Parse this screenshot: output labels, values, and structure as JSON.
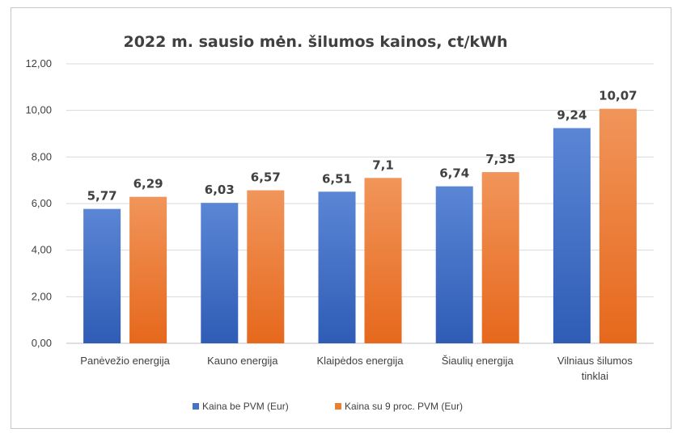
{
  "chart_data": {
    "type": "bar",
    "title": "2022 m. sausio mėn. šilumos kainos, ct/kWh",
    "categories": [
      [
        "Panėvežio energija"
      ],
      [
        "Kauno energija"
      ],
      [
        "Klaipėdos energija"
      ],
      [
        "Šiaulių energija"
      ],
      [
        "Vilniaus šilumos",
        "tinklai"
      ]
    ],
    "series": [
      {
        "name": "Kaina be PVM (Eur)",
        "values": [
          5.77,
          6.03,
          6.51,
          6.74,
          9.24
        ],
        "labels": [
          "5,77",
          "6,03",
          "6,51",
          "6,74",
          "9,24"
        ],
        "color": "#4472c4",
        "color_top": "#5b86d6",
        "color_bottom": "#2f5cb5"
      },
      {
        "name": "Kaina su 9 proc. PVM (Eur)",
        "values": [
          6.29,
          6.57,
          7.1,
          7.35,
          10.07
        ],
        "labels": [
          "6,29",
          "6,57",
          "7,1",
          "7,35",
          "10,07"
        ],
        "color": "#ed7d31",
        "color_top": "#f1955a",
        "color_bottom": "#e6681c"
      }
    ],
    "ylim": [
      0,
      12
    ],
    "y_ticks": [
      "0,00",
      "2,00",
      "4,00",
      "6,00",
      "8,00",
      "10,00",
      "12,00"
    ],
    "grid": true,
    "legend_position": "bottom",
    "xlabel": "",
    "ylabel": ""
  }
}
